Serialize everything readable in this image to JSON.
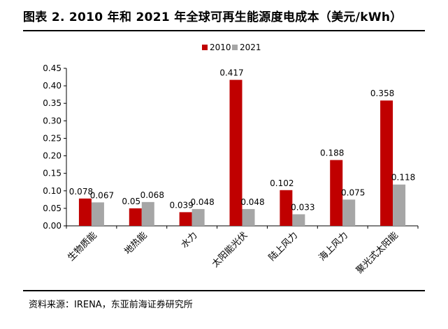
{
  "header": {
    "title": "图表 2.  2010 年和 2021 年全球可再生能源度电成本（美元/kWh）"
  },
  "footer": {
    "source": "资料来源：IRENA，东亚前海证券研究所"
  },
  "chart_data": {
    "type": "bar",
    "title": "",
    "xlabel": "",
    "ylabel": "",
    "categories": [
      "生物质能",
      "地热能",
      "水力",
      "太阳能光伏",
      "陆上风力",
      "海上风力",
      "聚光式太阳能"
    ],
    "series": [
      {
        "name": "2010",
        "color": "#c00000",
        "values": [
          0.078,
          0.05,
          0.039,
          0.417,
          0.102,
          0.188,
          0.358
        ],
        "labels": [
          "0.078",
          "0.05",
          "0.039",
          "0.417",
          "0.102",
          "0.188",
          "0.358"
        ]
      },
      {
        "name": "2021",
        "color": "#a6a6a6",
        "values": [
          0.067,
          0.068,
          0.048,
          0.048,
          0.033,
          0.075,
          0.118
        ],
        "labels": [
          "0.067",
          "0.068",
          "0.048",
          "0.048",
          "0.033",
          "0.075",
          "0.118"
        ]
      }
    ],
    "yticks": [
      "0.00",
      "0.05",
      "0.10",
      "0.15",
      "0.20",
      "0.25",
      "0.30",
      "0.35",
      "0.40",
      "0.45"
    ],
    "ylim": [
      0,
      0.45
    ],
    "grid": false,
    "legend": "top-center"
  }
}
